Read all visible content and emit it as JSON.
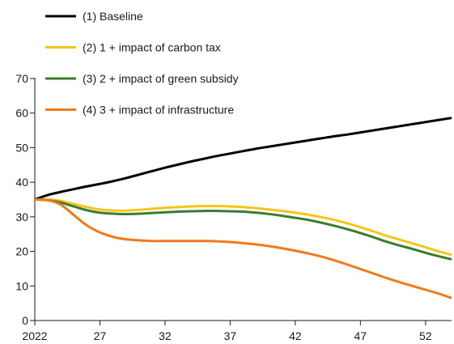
{
  "chart_data": {
    "type": "line",
    "title": "",
    "xlabel": "",
    "ylabel": "",
    "xlim": [
      2022,
      2054
    ],
    "ylim": [
      0,
      70
    ],
    "x_ticks": [
      2022,
      2027,
      2032,
      2037,
      2042,
      2047,
      2052
    ],
    "x_tick_labels": [
      "2022",
      "27",
      "32",
      "37",
      "42",
      "47",
      "52"
    ],
    "y_ticks": [
      0,
      10,
      20,
      30,
      40,
      50,
      60,
      70
    ],
    "y_tick_labels": [
      "0",
      "10",
      "20",
      "30",
      "40",
      "50",
      "60",
      "70"
    ],
    "grid": false,
    "legend_position": "top-left",
    "x": [
      2022,
      2023,
      2024,
      2025,
      2026,
      2027,
      2028,
      2029,
      2030,
      2031,
      2032,
      2033,
      2034,
      2035,
      2036,
      2037,
      2038,
      2039,
      2040,
      2041,
      2042,
      2043,
      2044,
      2045,
      2046,
      2047,
      2048,
      2049,
      2050,
      2051,
      2052,
      2053,
      2054
    ],
    "series": [
      {
        "name": "(1) Baseline",
        "color": "#000000",
        "values": [
          35.0,
          36.3,
          37.2,
          38.0,
          38.8,
          39.5,
          40.3,
          41.2,
          42.2,
          43.2,
          44.2,
          45.1,
          46.0,
          46.8,
          47.6,
          48.3,
          49.0,
          49.7,
          50.3,
          50.9,
          51.5,
          52.1,
          52.7,
          53.3,
          53.8,
          54.4,
          55.0,
          55.6,
          56.2,
          56.8,
          57.4,
          58.0,
          58.6
        ]
      },
      {
        "name": "(2) 1 + impact of carbon tax",
        "color": "#f5c518",
        "values": [
          35.0,
          35.0,
          34.6,
          33.7,
          32.8,
          32.1,
          31.8,
          31.8,
          32.0,
          32.3,
          32.6,
          32.8,
          33.0,
          33.1,
          33.1,
          33.0,
          32.8,
          32.5,
          32.1,
          31.7,
          31.2,
          30.6,
          29.9,
          29.1,
          28.1,
          27.0,
          25.8,
          24.5,
          23.4,
          22.3,
          21.2,
          20.0,
          19.0
        ]
      },
      {
        "name": "(3) 2 + impact of green subsidy",
        "color": "#3a7d2c",
        "values": [
          35.0,
          34.8,
          34.1,
          33.0,
          31.9,
          31.2,
          30.9,
          30.8,
          30.9,
          31.1,
          31.3,
          31.5,
          31.6,
          31.7,
          31.7,
          31.6,
          31.5,
          31.2,
          30.8,
          30.3,
          29.7,
          29.1,
          28.3,
          27.4,
          26.4,
          25.3,
          24.1,
          22.8,
          21.7,
          20.7,
          19.6,
          18.6,
          17.7
        ]
      },
      {
        "name": "(4) 3 + impact of infrastructure",
        "color": "#f07a1a",
        "values": [
          35.0,
          34.8,
          33.5,
          30.5,
          27.5,
          25.5,
          24.2,
          23.5,
          23.2,
          23.0,
          23.0,
          23.0,
          23.0,
          23.0,
          22.9,
          22.7,
          22.4,
          22.0,
          21.5,
          20.9,
          20.2,
          19.4,
          18.5,
          17.4,
          16.2,
          14.9,
          13.6,
          12.3,
          11.1,
          10.0,
          8.9,
          7.8,
          6.5
        ]
      }
    ]
  }
}
